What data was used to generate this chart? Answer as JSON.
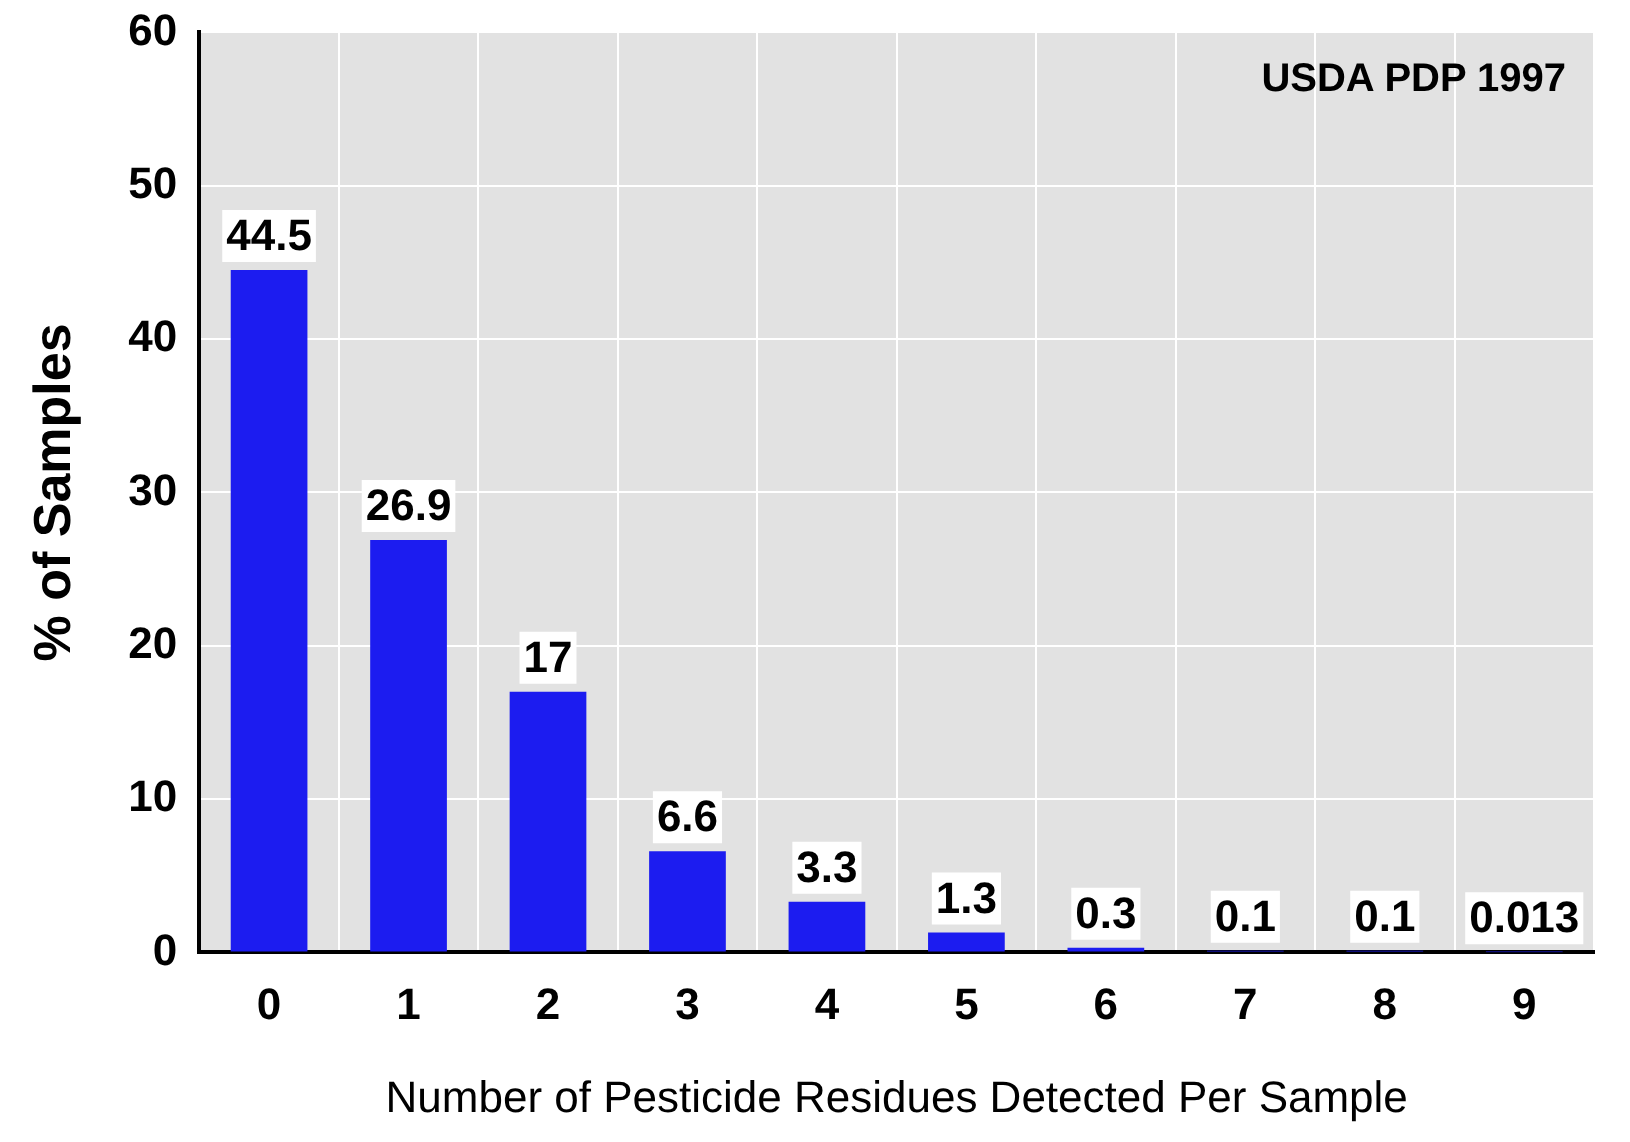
{
  "chart_data": {
    "type": "bar",
    "xlabel": "Number of Pesticide Residues Detected Per Sample",
    "ylabel": "% of Samples",
    "categories": [
      "0",
      "1",
      "2",
      "3",
      "4",
      "5",
      "6",
      "7",
      "8",
      "9"
    ],
    "values": [
      44.5,
      26.9,
      17,
      6.6,
      3.3,
      1.3,
      0.3,
      0.1,
      0.1,
      0.013
    ],
    "color": "#1c1cf0",
    "ylim": [
      0,
      60
    ],
    "yticks": [
      0,
      10,
      20,
      30,
      40,
      50,
      60
    ],
    "grid": true,
    "data_labels": true,
    "annotations": [
      "USDA PDP 1997"
    ]
  }
}
